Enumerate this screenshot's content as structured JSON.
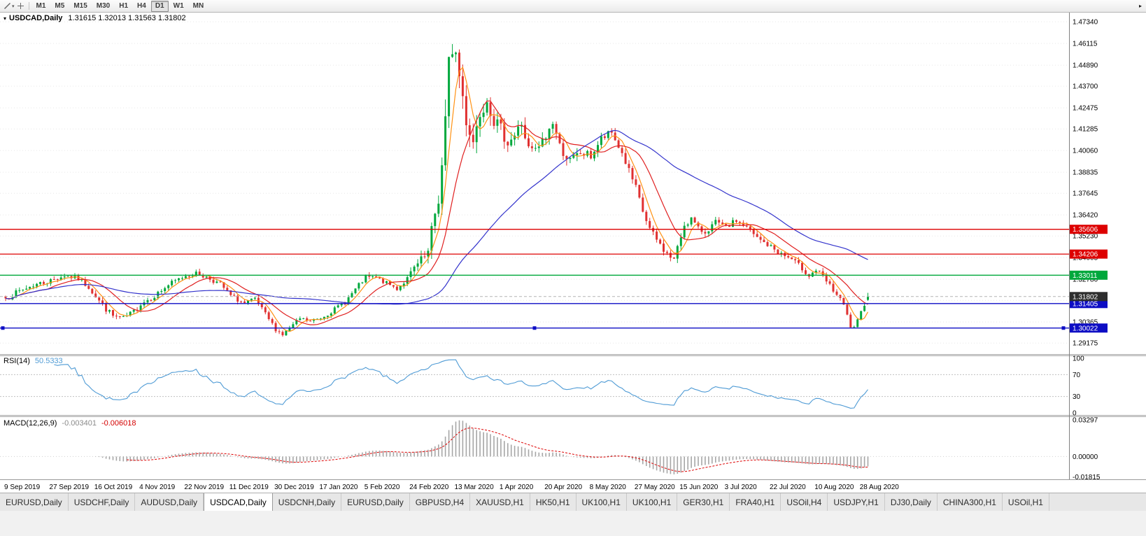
{
  "toolbar": {
    "tool_caret_glyph": "▾",
    "overflow_glyph": "▸",
    "timeframes": [
      {
        "label": "M1"
      },
      {
        "label": "M5"
      },
      {
        "label": "M15"
      },
      {
        "label": "M30"
      },
      {
        "label": "H1"
      },
      {
        "label": "H4"
      },
      {
        "label": "D1",
        "active": true
      },
      {
        "label": "W1"
      },
      {
        "label": "MN"
      }
    ]
  },
  "chart_header": {
    "dropdown_glyph": "▾",
    "symbol_period": "USDCAD,Daily",
    "ohlc_text": "1.31615 1.32013 1.31563 1.31802"
  },
  "rsi_panel": {
    "name_label": "RSI(14)",
    "value_label": "50.5333"
  },
  "macd_panel": {
    "name_label": "MACD(12,26,9)",
    "main_value_label": "-0.003401",
    "signal_value_label": "-0.006018"
  },
  "chart_data": {
    "type": "candlestick",
    "symbol": "USDCAD",
    "period": "Daily",
    "title": "USDCAD,Daily",
    "last_ohlc": {
      "open": 1.31615,
      "high": 1.32013,
      "low": 1.31563,
      "close": 1.31802
    },
    "current_price": {
      "value": 1.31802,
      "label": "1.31802",
      "badge_color": "#2e2e2e"
    },
    "y_axis_ticks": [
      "1.47340",
      "1.46115",
      "1.44890",
      "1.43700",
      "1.42475",
      "1.41285",
      "1.40060",
      "1.38835",
      "1.37645",
      "1.36420",
      "1.35230",
      "1.34005",
      "1.32780",
      "1.31590",
      "1.30365",
      "1.29175"
    ],
    "y_domain": [
      1.2855,
      1.4786
    ],
    "x_labels": [
      "9 Sep 2019",
      "27 Sep 2019",
      "16 Oct 2019",
      "4 Nov 2019",
      "22 Nov 2019",
      "11 Dec 2019",
      "30 Dec 2019",
      "17 Jan 2020",
      "5 Feb 2020",
      "24 Feb 2020",
      "13 Mar 2020",
      "1 Apr 2020",
      "20 Apr 2020",
      "8 May 2020",
      "27 May 2020",
      "15 Jun 2020",
      "3 Jul 2020",
      "22 Jul 2020",
      "10 Aug 2020",
      "28 Aug 2020"
    ],
    "bars_per_label": 13,
    "num_candles": 250,
    "seed": 7,
    "candle_up_color": "#00a83c",
    "candle_down_color": "#e03131",
    "anchors": [
      [
        0,
        1.317,
        0.004
      ],
      [
        4,
        1.321,
        0.004
      ],
      [
        8,
        1.3245,
        0.004
      ],
      [
        13,
        1.327,
        0.004
      ],
      [
        17,
        1.33,
        0.0038
      ],
      [
        21,
        1.328,
        0.0038
      ],
      [
        24,
        1.3235,
        0.004
      ],
      [
        28,
        1.313,
        0.0045
      ],
      [
        31,
        1.307,
        0.004
      ],
      [
        34,
        1.3055,
        0.0038
      ],
      [
        37,
        1.3095,
        0.0038
      ],
      [
        39,
        1.314,
        0.0038
      ],
      [
        43,
        1.3185,
        0.0038
      ],
      [
        47,
        1.3245,
        0.0038
      ],
      [
        52,
        1.33,
        0.0036
      ],
      [
        55,
        1.331,
        0.0034
      ],
      [
        58,
        1.329,
        0.0034
      ],
      [
        62,
        1.325,
        0.0034
      ],
      [
        65,
        1.3185,
        0.0034
      ],
      [
        69,
        1.314,
        0.0034
      ],
      [
        72,
        1.3165,
        0.003
      ],
      [
        75,
        1.308,
        0.003
      ],
      [
        78,
        1.2995,
        0.0028
      ],
      [
        80,
        1.2965,
        0.0026
      ],
      [
        82,
        1.3,
        0.0028
      ],
      [
        85,
        1.3055,
        0.0028
      ],
      [
        88,
        1.304,
        0.0028
      ],
      [
        91,
        1.306,
        0.0028
      ],
      [
        94,
        1.3095,
        0.0028
      ],
      [
        98,
        1.315,
        0.0032
      ],
      [
        101,
        1.322,
        0.0034
      ],
      [
        104,
        1.329,
        0.0034
      ],
      [
        107,
        1.3285,
        0.003
      ],
      [
        110,
        1.3255,
        0.003
      ],
      [
        113,
        1.3225,
        0.003
      ],
      [
        116,
        1.328,
        0.004
      ],
      [
        118,
        1.334,
        0.005
      ],
      [
        120,
        1.338,
        0.007
      ],
      [
        122,
        1.342,
        0.01
      ],
      [
        124,
        1.365,
        0.014
      ],
      [
        125,
        1.374,
        0.016
      ],
      [
        126,
        1.391,
        0.019
      ],
      [
        127,
        1.415,
        0.021
      ],
      [
        128,
        1.447,
        0.023
      ],
      [
        129,
        1.461,
        0.024
      ],
      [
        130,
        1.455,
        0.022
      ],
      [
        131,
        1.443,
        0.02
      ],
      [
        133,
        1.419,
        0.016
      ],
      [
        135,
        1.406,
        0.014
      ],
      [
        137,
        1.423,
        0.013
      ],
      [
        139,
        1.431,
        0.012
      ],
      [
        141,
        1.418,
        0.011
      ],
      [
        143,
        1.412,
        0.01
      ],
      [
        145,
        1.406,
        0.0095
      ],
      [
        147,
        1.409,
        0.009
      ],
      [
        149,
        1.416,
        0.009
      ],
      [
        151,
        1.401,
        0.0085
      ],
      [
        153,
        1.4,
        0.0085
      ],
      [
        156,
        1.408,
        0.0085
      ],
      [
        158,
        1.417,
        0.0085
      ],
      [
        160,
        1.403,
        0.008
      ],
      [
        163,
        1.3945,
        0.0075
      ],
      [
        166,
        1.399,
        0.007
      ],
      [
        169,
        1.3975,
        0.0068
      ],
      [
        172,
        1.407,
        0.0062
      ],
      [
        175,
        1.4105,
        0.0058
      ],
      [
        178,
        1.399,
        0.0058
      ],
      [
        180,
        1.389,
        0.0056
      ],
      [
        182,
        1.379,
        0.0056
      ],
      [
        184,
        1.366,
        0.0056
      ],
      [
        186,
        1.356,
        0.0054
      ],
      [
        188,
        1.35,
        0.005
      ],
      [
        191,
        1.342,
        0.005
      ],
      [
        193,
        1.339,
        0.0052
      ],
      [
        194,
        1.345,
        0.0056
      ],
      [
        196,
        1.359,
        0.0056
      ],
      [
        198,
        1.362,
        0.005
      ],
      [
        200,
        1.356,
        0.0046
      ],
      [
        202,
        1.3545,
        0.0042
      ],
      [
        205,
        1.36,
        0.004
      ],
      [
        208,
        1.357,
        0.004
      ],
      [
        211,
        1.361,
        0.004
      ],
      [
        214,
        1.357,
        0.004
      ],
      [
        217,
        1.351,
        0.004
      ],
      [
        221,
        1.346,
        0.004
      ],
      [
        224,
        1.342,
        0.004
      ],
      [
        227,
        1.339,
        0.004
      ],
      [
        230,
        1.334,
        0.004
      ],
      [
        232,
        1.33,
        0.004
      ],
      [
        234,
        1.333,
        0.004
      ],
      [
        236,
        1.329,
        0.004
      ],
      [
        238,
        1.324,
        0.0038
      ],
      [
        240,
        1.319,
        0.0036
      ],
      [
        242,
        1.313,
        0.0036
      ],
      [
        243,
        1.307,
        0.0034
      ],
      [
        244,
        1.301,
        0.0032
      ],
      [
        245,
        1.2998,
        0.003
      ],
      [
        246,
        1.304,
        0.003
      ],
      [
        247,
        1.309,
        0.003
      ],
      [
        248,
        1.314,
        0.003
      ],
      [
        249,
        1.31802,
        0.0045
      ]
    ],
    "moving_averages": [
      {
        "name": "fast-ma",
        "period": 5,
        "color": "#ff9214"
      },
      {
        "name": "mid-ma",
        "period": 13,
        "color": "#e02020"
      },
      {
        "name": "slow-ma",
        "period": 50,
        "color": "#3333cc"
      }
    ],
    "hlines": [
      {
        "price": 1.35606,
        "label": "1.35606",
        "color": "#dd0000",
        "selected": false
      },
      {
        "price": 1.34206,
        "label": "1.34206",
        "color": "#dd0000",
        "selected": false
      },
      {
        "price": 1.33011,
        "label": "1.33011",
        "color": "#00a83c",
        "selected": false
      },
      {
        "price": 1.31405,
        "label": "1.31405",
        "color": "#0d0dc4",
        "selected": false
      },
      {
        "price": 1.30022,
        "label": "1.30022",
        "color": "#0d0dc4",
        "selected": true
      }
    ],
    "rsi": {
      "period": 14,
      "value": 50.5333,
      "levels": [
        70,
        30
      ],
      "axis_labels": [
        "100",
        "70",
        "30",
        "0"
      ],
      "color": "#4f9bd5"
    },
    "macd": {
      "fast": 12,
      "slow": 26,
      "signal": 9,
      "value": -0.003401,
      "signal_value": -0.006018,
      "axis_labels": [
        "0.03297",
        "0.00000",
        "-0.01815"
      ],
      "domain": [
        -0.0205,
        0.0355
      ],
      "histogram_color": "#a6a6a6",
      "signal_color": "#dd0000"
    }
  },
  "tabs": [
    {
      "label": "EURUSD,Daily"
    },
    {
      "label": "USDCHF,Daily"
    },
    {
      "label": "AUDUSD,Daily"
    },
    {
      "label": "USDCAD,Daily",
      "active": true
    },
    {
      "label": "USDCNH,Daily"
    },
    {
      "label": "EURUSD,Daily"
    },
    {
      "label": "GBPUSD,H4"
    },
    {
      "label": "XAUUSD,H1"
    },
    {
      "label": "HK50,H1"
    },
    {
      "label": "UK100,H1"
    },
    {
      "label": "UK100,H1"
    },
    {
      "label": "GER30,H1"
    },
    {
      "label": "FRA40,H1"
    },
    {
      "label": "USOil,H4"
    },
    {
      "label": "USDJPY,H1"
    },
    {
      "label": "DJ30,Daily"
    },
    {
      "label": "CHINA300,H1"
    },
    {
      "label": "USOil,H1"
    }
  ]
}
